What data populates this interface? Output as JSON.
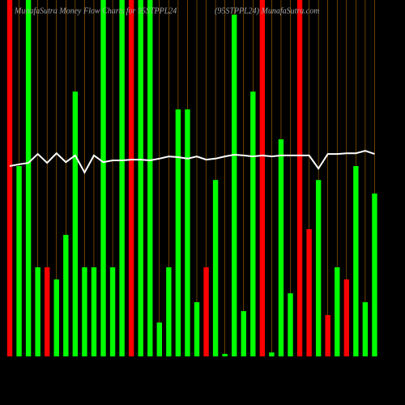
{
  "chart_data": {
    "type": "bar",
    "title": "MunafaSutra  Money Flow  Charts for 95STPPL24",
    "subtitle": "(95STPPL24) MunafaSutra.com",
    "ylim": [
      0,
      100
    ],
    "grid": true,
    "grid_color": "#b36b00",
    "series": [
      {
        "type": "bar",
        "colors": [
          "#ff0000",
          "#00ff00",
          "#00ff00",
          "#00ff00",
          "#ff0000",
          "#00ff00",
          "#00ff00",
          "#00ff00",
          "#00ff00",
          "#00ff00",
          "#00ff00",
          "#00ff00",
          "#00ff00",
          "#ff0000",
          "#00ff00",
          "#00ff00",
          "#00ff00",
          "#00ff00",
          "#00ff00",
          "#00ff00",
          "#00ff00",
          "#ff0000",
          "#00ff00",
          "#00ff00",
          "#00ff00",
          "#00ff00",
          "#00ff00",
          "#ff0000",
          "#00ff00",
          "#00ff00",
          "#00ff00",
          "#ff0000",
          "#ff0000",
          "#00ff00",
          "#ff0000",
          "#00ff00",
          "#ff0000",
          "#00ff00",
          "#00ff00",
          "#00ff00"
        ],
        "values": [
          100,
          53.4,
          100,
          25,
          25,
          21.6,
          34.1,
          74.3,
          25,
          25,
          100,
          25,
          100,
          100,
          100,
          100,
          9.5,
          25,
          69.3,
          69.3,
          15.2,
          25,
          49.5,
          0.7,
          95.9,
          12.7,
          74.3,
          100,
          1.1,
          60.9,
          17.7,
          100,
          35.7,
          49.5,
          11.6,
          25,
          21.6,
          53.4,
          15.2,
          45.7
        ]
      },
      {
        "type": "line",
        "color": "#ffffff",
        "values": [
          53.4,
          53.9,
          54.3,
          56.8,
          54.3,
          57.0,
          54.5,
          56.4,
          51.6,
          56.4,
          54.5,
          55.0,
          55.0,
          55.2,
          55.2,
          55.0,
          55.5,
          56.1,
          55.9,
          55.5,
          56.1,
          55.2,
          55.5,
          56.1,
          56.6,
          56.4,
          56.1,
          56.4,
          56.1,
          56.4,
          56.4,
          56.4,
          56.4,
          52.7,
          56.8,
          56.8,
          57.0,
          57.0,
          57.7,
          56.8
        ]
      }
    ]
  }
}
